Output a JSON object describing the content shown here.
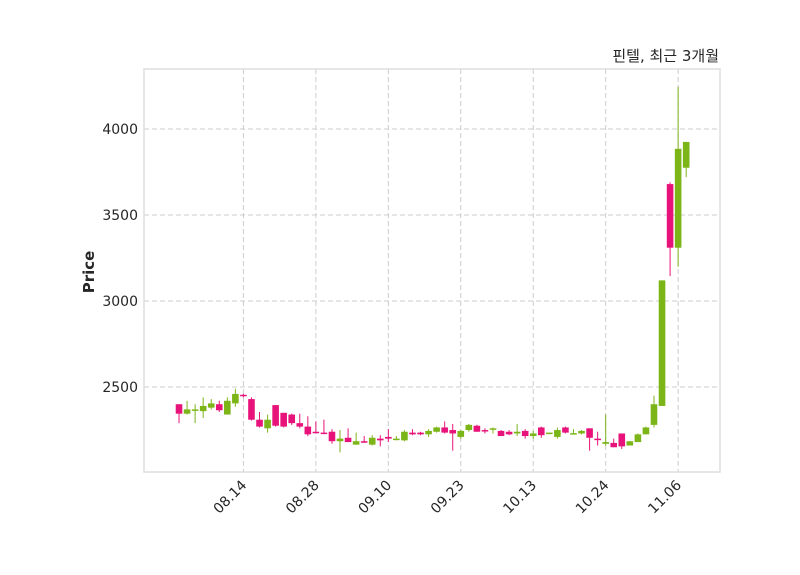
{
  "chart_data": {
    "type": "candlestick",
    "title": "핀텔, 최근 3개월",
    "xlabel": "",
    "ylabel": "Price",
    "ylim": [
      2006,
      4349
    ],
    "xlim_index": [
      -4.35,
      67.2
    ],
    "grid": true,
    "yticks": [
      2500,
      3000,
      3500,
      4000
    ],
    "xticks": [
      {
        "index": 8,
        "label": "08.14"
      },
      {
        "index": 17,
        "label": "08.28"
      },
      {
        "index": 26,
        "label": "09.10"
      },
      {
        "index": 35,
        "label": "09.23"
      },
      {
        "index": 44,
        "label": "10.13"
      },
      {
        "index": 53,
        "label": "10.24"
      },
      {
        "index": 62,
        "label": "11.06"
      }
    ],
    "colors": {
      "up": "#7cb518",
      "down": "#e8137a",
      "grid": "#cccccc",
      "frame": "#dddddd"
    },
    "ohlc": [
      [
        2400,
        2400,
        2290,
        2345
      ],
      [
        2345,
        2420,
        2340,
        2370
      ],
      [
        2365,
        2400,
        2290,
        2370
      ],
      [
        2360,
        2440,
        2320,
        2390
      ],
      [
        2380,
        2430,
        2370,
        2405
      ],
      [
        2400,
        2420,
        2355,
        2365
      ],
      [
        2340,
        2440,
        2340,
        2420
      ],
      [
        2405,
        2490,
        2385,
        2460
      ],
      [
        2455,
        2460,
        2440,
        2450
      ],
      [
        2430,
        2440,
        2305,
        2310
      ],
      [
        2310,
        2355,
        2265,
        2270
      ],
      [
        2260,
        2340,
        2235,
        2310
      ],
      [
        2395,
        2395,
        2270,
        2275
      ],
      [
        2350,
        2350,
        2265,
        2270
      ],
      [
        2340,
        2345,
        2280,
        2290
      ],
      [
        2290,
        2345,
        2260,
        2270
      ],
      [
        2270,
        2330,
        2215,
        2225
      ],
      [
        2240,
        2300,
        2230,
        2235
      ],
      [
        2235,
        2310,
        2230,
        2232
      ],
      [
        2240,
        2255,
        2170,
        2185
      ],
      [
        2185,
        2250,
        2120,
        2200
      ],
      [
        2205,
        2260,
        2180,
        2180
      ],
      [
        2165,
        2235,
        2165,
        2185
      ],
      [
        2185,
        2215,
        2175,
        2180
      ],
      [
        2165,
        2220,
        2160,
        2205
      ],
      [
        2200,
        2220,
        2155,
        2190
      ],
      [
        2210,
        2255,
        2180,
        2200
      ],
      [
        2195,
        2215,
        2190,
        2200
      ],
      [
        2190,
        2250,
        2185,
        2240
      ],
      [
        2235,
        2255,
        2220,
        2225
      ],
      [
        2235,
        2240,
        2220,
        2225
      ],
      [
        2225,
        2255,
        2210,
        2245
      ],
      [
        2240,
        2270,
        2235,
        2265
      ],
      [
        2265,
        2300,
        2230,
        2235
      ],
      [
        2250,
        2285,
        2130,
        2230
      ],
      [
        2210,
        2250,
        2200,
        2245
      ],
      [
        2250,
        2285,
        2240,
        2280
      ],
      [
        2275,
        2280,
        2240,
        2240
      ],
      [
        2250,
        2260,
        2230,
        2245
      ],
      [
        2255,
        2265,
        2230,
        2260
      ],
      [
        2245,
        2250,
        2215,
        2215
      ],
      [
        2240,
        2250,
        2220,
        2225
      ],
      [
        2230,
        2285,
        2215,
        2240
      ],
      [
        2245,
        2255,
        2200,
        2215
      ],
      [
        2215,
        2245,
        2200,
        2230
      ],
      [
        2265,
        2270,
        2205,
        2220
      ],
      [
        2230,
        2235,
        2225,
        2235
      ],
      [
        2210,
        2265,
        2200,
        2250
      ],
      [
        2265,
        2270,
        2230,
        2235
      ],
      [
        2225,
        2255,
        2225,
        2232
      ],
      [
        2230,
        2250,
        2225,
        2245
      ],
      [
        2260,
        2260,
        2130,
        2205
      ],
      [
        2200,
        2240,
        2160,
        2195
      ],
      [
        2170,
        2340,
        2160,
        2180
      ],
      [
        2175,
        2200,
        2150,
        2150
      ],
      [
        2230,
        2230,
        2140,
        2155
      ],
      [
        2160,
        2185,
        2160,
        2185
      ],
      [
        2180,
        2230,
        2180,
        2225
      ],
      [
        2225,
        2270,
        2225,
        2265
      ],
      [
        2280,
        2450,
        2265,
        2400
      ],
      [
        2390,
        3120,
        2390,
        3120
      ],
      [
        3680,
        3690,
        3145,
        3310
      ],
      [
        3310,
        4245,
        3200,
        3885
      ],
      [
        3775,
        3925,
        3720,
        3925
      ]
    ]
  }
}
